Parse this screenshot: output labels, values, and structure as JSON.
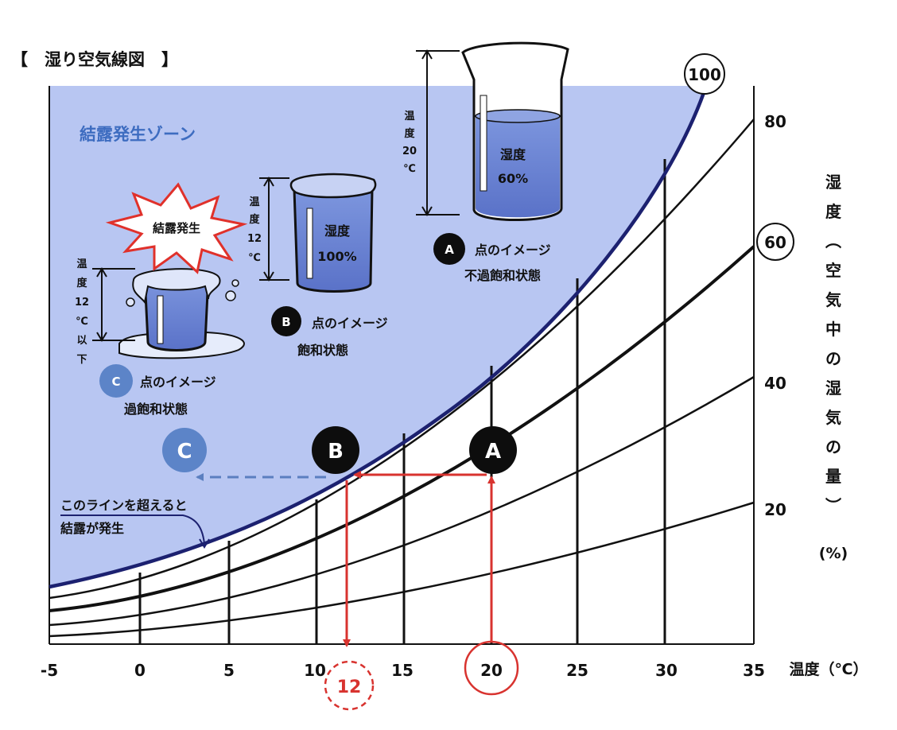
{
  "title": "【　湿り空気線図　】",
  "zone_label": "結露発生ゾーン",
  "x_axis": {
    "ticks": [
      "-5",
      "0",
      "5",
      "10",
      "15",
      "20",
      "25",
      "30",
      "35"
    ],
    "label": "温度（℃）"
  },
  "y_axis": {
    "label_chars": [
      "湿",
      "度",
      "︵",
      "空",
      "気",
      "中",
      "の",
      "湿",
      "気",
      "の",
      "量",
      "︶"
    ],
    "unit": "(%)"
  },
  "curve_labels": {
    "rh100": "100",
    "rh80": "80",
    "rh60": "60",
    "rh40": "40",
    "rh20": "20"
  },
  "points": {
    "A": {
      "letter": "A",
      "temp_c": 20,
      "rh_pct": 60
    },
    "B": {
      "letter": "B",
      "temp_c": 12,
      "rh_pct": 100
    },
    "C": {
      "letter": "C"
    }
  },
  "markers": {
    "temp20": "20",
    "temp12": "12"
  },
  "callouts": {
    "a_title": "点のイメージ",
    "a_state": "不過飽和状態",
    "b_title": "点のイメージ",
    "b_state": "飽和状態",
    "c_title": "点のイメージ",
    "c_state": "過飽和状態"
  },
  "beakers": {
    "a": {
      "line1": "湿度",
      "line2": "60%",
      "temp_chars": [
        "温",
        "度",
        "20",
        "℃"
      ]
    },
    "b": {
      "line1": "湿度",
      "line2": "100%",
      "temp_chars": [
        "温",
        "度",
        "12",
        "℃"
      ]
    },
    "c": {
      "temp_chars": [
        "温",
        "度",
        "12",
        "℃",
        "以",
        "下"
      ],
      "burst": "結露発生"
    }
  },
  "line_note": {
    "line1": "このラインを超えると",
    "line2": "結露が発生"
  },
  "colors": {
    "zone_fill": "#b8c6f2",
    "saturation_curve": "#1c2170",
    "zone_text": "#3d6cc0",
    "point_c": "#5c84c8",
    "arrow_red": "#d8332f",
    "arrow_blue": "#5b7fc0",
    "burst_red": "#e0312b"
  }
}
